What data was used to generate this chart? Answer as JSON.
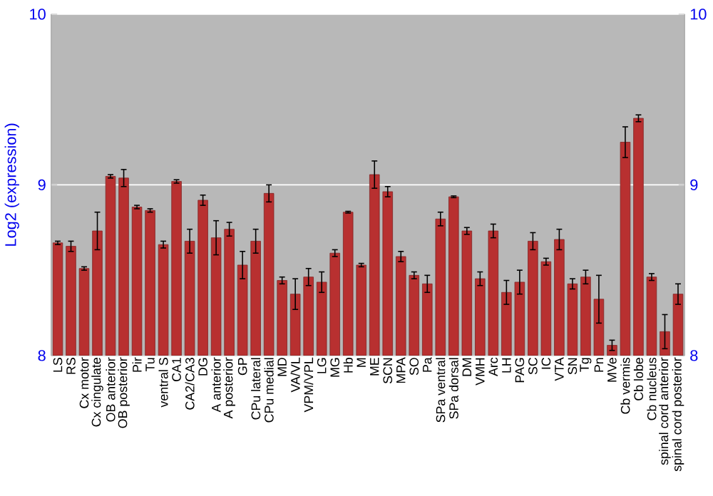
{
  "chart_data": {
    "type": "bar",
    "ylabel": "Log2 (expression)",
    "categories": [
      "LS",
      "RS",
      "Cx motor",
      "Cx cingulate",
      "OB anterior",
      "OB posterior",
      "Pir",
      "Tu",
      "ventral S",
      "CA1",
      "CA2/CA3",
      "DG",
      "A anterior",
      "A posterior",
      "GP",
      "CPu lateral",
      "CPu medial",
      "MD",
      "VA/VL",
      "VPM/VPL",
      "LG",
      "MG",
      "Hb",
      "M",
      "ME",
      "SCN",
      "MPA",
      "SO",
      "Pa",
      "SPa ventral",
      "SPa dorsal",
      "DM",
      "VMH",
      "Arc",
      "LH",
      "PAG",
      "SC",
      "IC",
      "VTA",
      "SN",
      "Tg",
      "Pn",
      "MVe",
      "Cb vermis",
      "Cb lobe",
      "Cb nucleus",
      "spinal cord anterior",
      "spinal cord posterior"
    ],
    "values": [
      8.66,
      8.64,
      8.51,
      8.73,
      9.05,
      9.04,
      8.87,
      8.85,
      8.65,
      9.02,
      8.67,
      8.91,
      8.69,
      8.74,
      8.53,
      8.67,
      8.95,
      8.44,
      8.36,
      8.46,
      8.43,
      8.6,
      8.84,
      8.53,
      9.06,
      8.96,
      8.58,
      8.47,
      8.42,
      8.8,
      8.93,
      8.73,
      8.45,
      8.73,
      8.37,
      8.43,
      8.67,
      8.55,
      8.68,
      8.42,
      8.46,
      8.33,
      8.06,
      9.25,
      9.39,
      8.46,
      8.14,
      8.36
    ],
    "errors": [
      0.01,
      0.03,
      0.01,
      0.11,
      0.01,
      0.05,
      0.01,
      0.01,
      0.02,
      0.01,
      0.07,
      0.03,
      0.1,
      0.04,
      0.08,
      0.07,
      0.05,
      0.02,
      0.09,
      0.05,
      0.06,
      0.02,
      0.005,
      0.01,
      0.08,
      0.03,
      0.03,
      0.02,
      0.05,
      0.04,
      0.005,
      0.02,
      0.04,
      0.04,
      0.07,
      0.07,
      0.05,
      0.02,
      0.06,
      0.03,
      0.04,
      0.14,
      0.03,
      0.09,
      0.02,
      0.02,
      0.1,
      0.06
    ],
    "color": "#b83030",
    "ylim": [
      8,
      10
    ],
    "yticks": [
      8,
      9,
      10
    ],
    "y2lim": [
      8,
      10
    ],
    "y2ticks": [
      8,
      9,
      10
    ],
    "grid": "y"
  }
}
